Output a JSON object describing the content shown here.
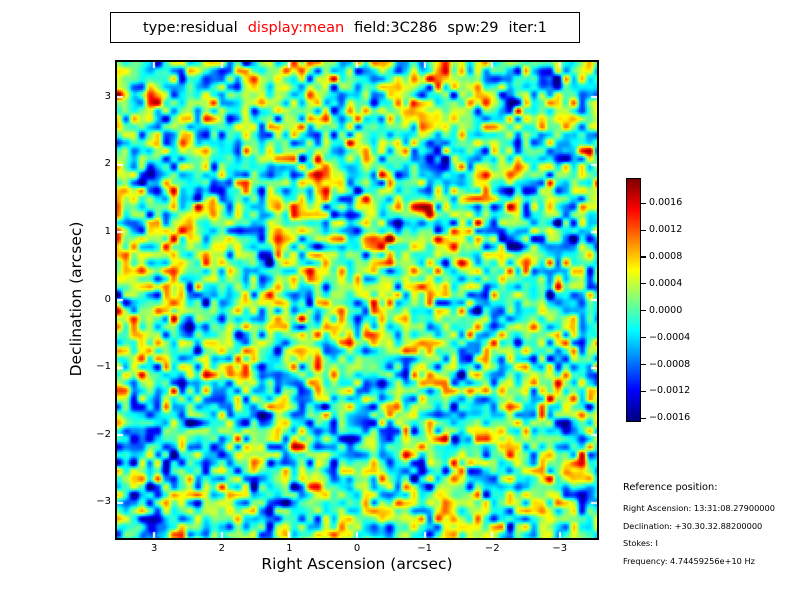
{
  "title": {
    "parts": [
      {
        "text": "type:residual",
        "color": "#000000"
      },
      {
        "text": "display:mean",
        "color": "#ff0000"
      },
      {
        "text": "field:3C286",
        "color": "#000000"
      },
      {
        "text": "spw:29",
        "color": "#000000"
      },
      {
        "text": "iter:1",
        "color": "#000000"
      }
    ]
  },
  "chart_data": {
    "type": "heatmap",
    "description": "Residual noise image (mean display) of calibrator field 3C286, spectral window 29, iteration 1. Values are zero-mean random residual noise rendered with the jet colormap.",
    "xlabel": "Right Ascension (arcsec)",
    "ylabel": "Declination (arcsec)",
    "xlim_left": 3.55,
    "xlim_right": -3.55,
    "ylim_bottom": -3.52,
    "ylim_top": 3.52,
    "xticks": [
      3,
      2,
      1,
      0,
      -1,
      -2,
      -3
    ],
    "yticks": [
      3,
      2,
      1,
      0,
      -1,
      -2,
      -3
    ],
    "grid": false,
    "colorbar": {
      "colormap": "jet",
      "vmin": -0.00164,
      "vmax": 0.00196,
      "ticks": [
        0.0016,
        0.0012,
        0.0008,
        0.0004,
        0.0,
        -0.0004,
        -0.0008,
        -0.0012,
        -0.0016
      ]
    },
    "noise": {
      "seed": 1331286,
      "res_x": 240,
      "res_y": 238,
      "upscale": 2,
      "cell1": 4,
      "cell2": 9,
      "octave2_weight": 0.55,
      "zero_t": 0.4556,
      "sigma_t": 0.155
    }
  },
  "reference": {
    "heading": "Reference position:",
    "lines": [
      "Right Ascension: 13:31:08.27900000",
      "Declination: +30.30.32.88200000",
      "Stokes: I",
      "Frequency: 4.74459256e+10 Hz"
    ]
  }
}
